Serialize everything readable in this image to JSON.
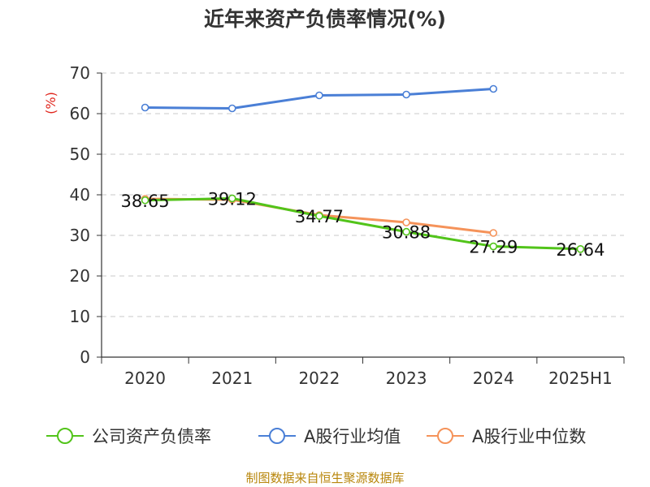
{
  "chart_data": {
    "type": "line",
    "title": "近年来资产负债率情况(%)",
    "xlabel": "",
    "ylabel": "(%)",
    "categories": [
      "2020",
      "2021",
      "2022",
      "2023",
      "2024",
      "2025H1"
    ],
    "ylim": [
      0,
      70
    ],
    "yticks": [
      0,
      10,
      20,
      30,
      40,
      50,
      60,
      70
    ],
    "grid": true,
    "legend_position": "bottom",
    "series": [
      {
        "name": "公司资产负债率",
        "color": "#52c41a",
        "values": [
          38.65,
          39.12,
          34.77,
          30.88,
          27.29,
          26.64
        ],
        "labels": [
          "38.65",
          "39.12",
          "34.77",
          "30.88",
          "27.29",
          "26.64"
        ]
      },
      {
        "name": "A股行业均值",
        "color": "#4a7fd6",
        "values": [
          61.5,
          61.3,
          64.5,
          64.7,
          66.1,
          null
        ]
      },
      {
        "name": "A股行业中位数",
        "color": "#f5935a",
        "values": [
          39.0,
          38.8,
          35.0,
          33.2,
          30.6,
          null
        ]
      }
    ],
    "source": "制图数据来自恒生聚源数据库"
  }
}
